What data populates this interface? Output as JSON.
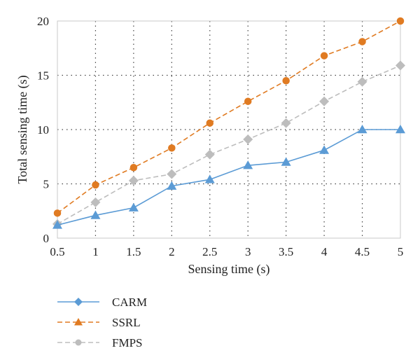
{
  "chart_data": {
    "type": "line",
    "title": "",
    "xlabel": "Sensing time (s)",
    "ylabel": "Total sensing time (s)",
    "x": [
      0.5,
      1,
      1.5,
      2,
      2.5,
      3,
      3.5,
      4,
      4.5,
      5
    ],
    "xlim": [
      0.5,
      5
    ],
    "ylim": [
      0,
      20
    ],
    "xticks": [
      "0.5",
      "1",
      "1.5",
      "2",
      "2.5",
      "3",
      "3.5",
      "4",
      "4.5",
      "5"
    ],
    "yticks": [
      "0",
      "5",
      "10",
      "15",
      "20"
    ],
    "grid": "dotted",
    "legend_position": "bottom-left",
    "series": [
      {
        "name": "CARM",
        "color": "#5b9bd5",
        "line_style": "solid",
        "marker": "triangle",
        "values": [
          1.2,
          2.1,
          2.8,
          4.8,
          5.4,
          6.7,
          7.0,
          8.1,
          10.0,
          10.0
        ]
      },
      {
        "name": "SSRL",
        "color": "#e07b22",
        "line_style": "dashed",
        "marker": "circle",
        "values": [
          2.3,
          4.9,
          6.5,
          8.3,
          10.6,
          12.6,
          14.5,
          16.8,
          18.1,
          20.0
        ]
      },
      {
        "name": "FMPS",
        "color": "#bdbdbd",
        "line_style": "dashed",
        "marker": "diamond",
        "values": [
          1.3,
          3.3,
          5.3,
          5.9,
          7.7,
          9.1,
          10.6,
          12.6,
          14.4,
          15.9
        ]
      }
    ],
    "legend_markers": [
      "diamond",
      "triangle",
      "circle"
    ]
  }
}
